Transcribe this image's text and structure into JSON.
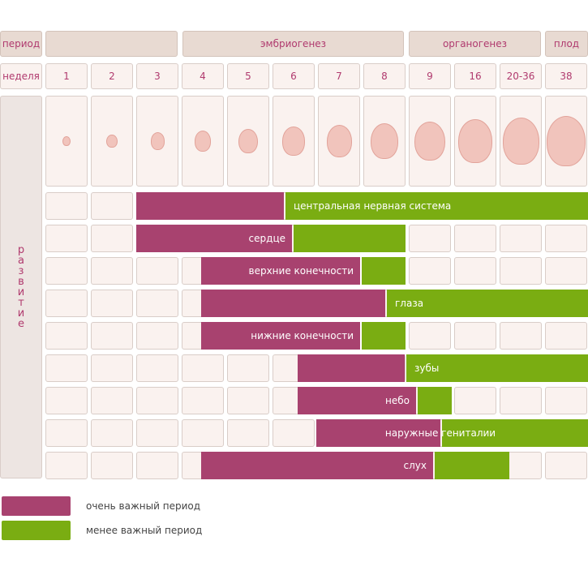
{
  "header": {
    "periods": [
      "период",
      "",
      "эмбриогенез",
      "органогенез",
      "плод"
    ],
    "week_label": "неделя",
    "weeks": [
      "1",
      "2",
      "3",
      "4",
      "5",
      "6",
      "7",
      "8",
      "9",
      "16",
      "20-36",
      "38"
    ],
    "side_label": "развитие"
  },
  "rows": [
    {
      "label": "центральная нервная система"
    },
    {
      "label": "сердце"
    },
    {
      "label": "верхние конечности"
    },
    {
      "label": "глаза"
    },
    {
      "label": "нижние конечности"
    },
    {
      "label": "зубы"
    },
    {
      "label": "небо"
    },
    {
      "label": "наружные гениталии"
    },
    {
      "label": "слух"
    }
  ],
  "legend": [
    {
      "label": "очень важный период",
      "color": "#a8426f"
    },
    {
      "label": "менее важный период",
      "color": "#7aad12"
    }
  ]
}
